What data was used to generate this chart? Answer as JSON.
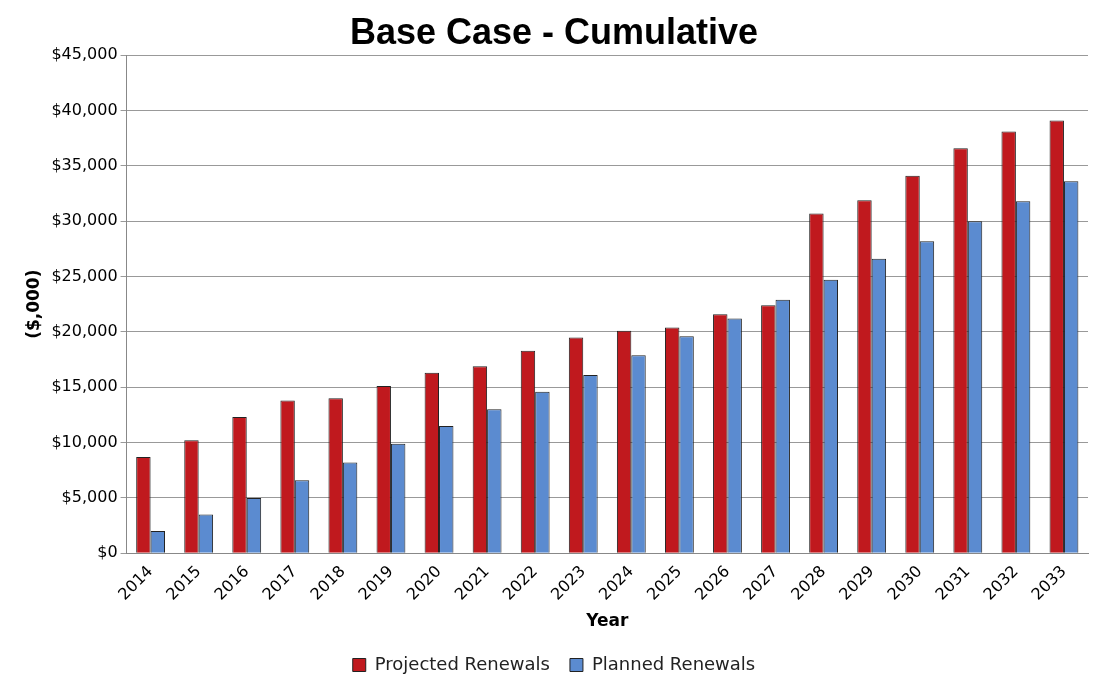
{
  "chart_data": {
    "type": "bar",
    "title": "Base Case - Cumulative",
    "xlabel": "Year",
    "ylabel": "($,000)",
    "categories": [
      "2014",
      "2015",
      "2016",
      "2017",
      "2018",
      "2019",
      "2020",
      "2021",
      "2022",
      "2023",
      "2024",
      "2025",
      "2026",
      "2027",
      "2028",
      "2029",
      "2030",
      "2031",
      "2032",
      "2033"
    ],
    "series": [
      {
        "name": "Projected Renewals",
        "color": "#c0191e",
        "values": [
          8700,
          10200,
          12300,
          13800,
          14000,
          15100,
          16300,
          16900,
          18300,
          19500,
          20100,
          20400,
          21600,
          22400,
          30700,
          31900,
          34100,
          36600,
          38100,
          39100
        ]
      },
      {
        "name": "Planned Renewals",
        "color": "#5b8bd0",
        "values": [
          2000,
          3500,
          5000,
          6600,
          8200,
          9900,
          11500,
          13000,
          14600,
          16100,
          17900,
          19600,
          21200,
          22900,
          24700,
          26600,
          28200,
          30000,
          31800,
          33600
        ]
      }
    ],
    "ylim": [
      0,
      45000
    ],
    "yticks": [
      {
        "value": 0,
        "label": "$0"
      },
      {
        "value": 5000,
        "label": "$5,000"
      },
      {
        "value": 10000,
        "label": "$10,000"
      },
      {
        "value": 15000,
        "label": "$15,000"
      },
      {
        "value": 20000,
        "label": "$20,000"
      },
      {
        "value": 25000,
        "label": "$25,000"
      },
      {
        "value": 30000,
        "label": "$30,000"
      },
      {
        "value": 35000,
        "label": "$35,000"
      },
      {
        "value": 40000,
        "label": "$40,000"
      },
      {
        "value": 45000,
        "label": "$45,000"
      }
    ],
    "grid": "y",
    "legend": "bottom"
  }
}
